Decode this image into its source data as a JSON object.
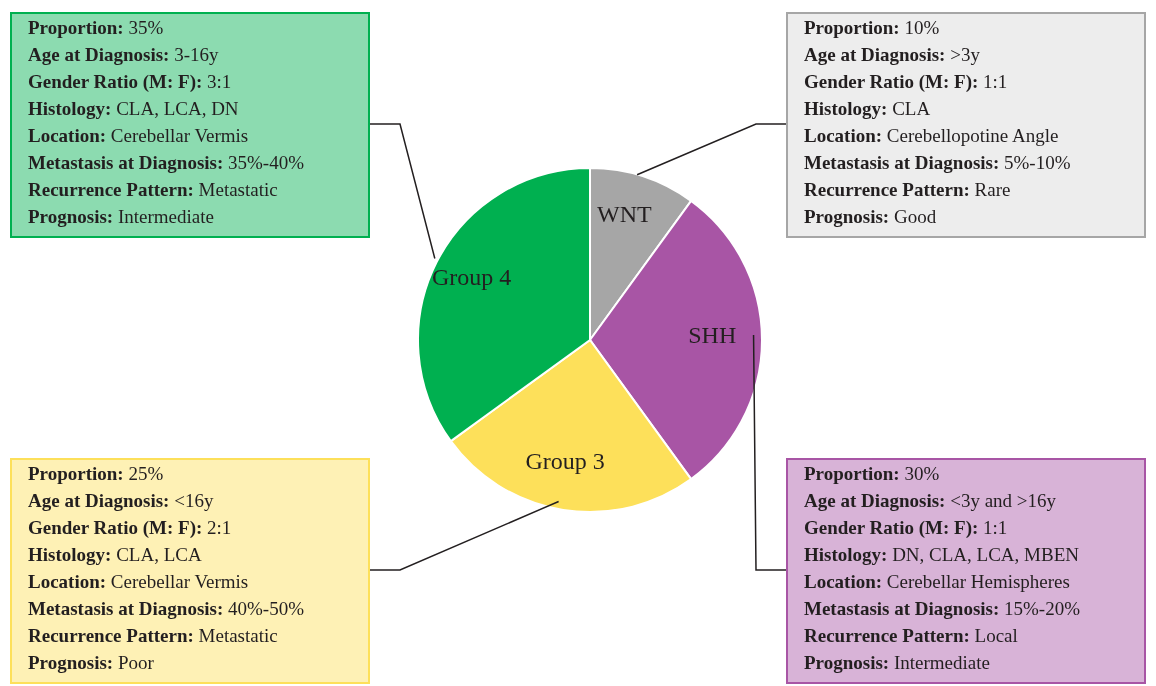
{
  "chart_data": {
    "type": "pie",
    "categories": [
      "WNT",
      "SHH",
      "Group 3",
      "Group 4"
    ],
    "values": [
      10,
      30,
      25,
      35
    ],
    "colors": [
      "#a6a6a6",
      "#a855a5",
      "#fde05a",
      "#00b050"
    ],
    "annotations": [
      "Proportion: 10%\nAge at Diagnosis: >3y\nGender Ratio (M: F): 1:1\nHistology: CLA\nLocation: Cerebellopotine Angle\nMetastasis at Diagnosis: 5%-10%\nRecurrence Pattern: Rare\nPrognosis: Good",
      "Proportion: 30%\nAge at Diagnosis: <3y and >16y\nGender Ratio (M: F): 1:1\nHistology: DN, CLA, LCA, MBEN\nLocation: Cerebellar Hemispheres\nMetastasis at Diagnosis: 15%-20%\nRecurrence Pattern: Local\nPrognosis: Intermediate",
      "Proportion: 25%\nAge at Diagnosis: <16y\nGender Ratio (M: F): 2:1\nHistology: CLA, LCA\nLocation: Cerebellar Vermis\nMetastasis at Diagnosis: 40%-50%\nRecurrence Pattern: Metastatic\nPrognosis: Poor",
      "Proportion: 35%\nAge at Diagnosis: 3-16y\nGender Ratio (M: F): 3:1\nHistology: CLA, LCA, DN\nLocation: Cerebellar Vermis\nMetastasis at Diagnosis: 35%-40%\nRecurrence Pattern: Metastatic\nPrognosis: Intermediate"
    ]
  }
}
